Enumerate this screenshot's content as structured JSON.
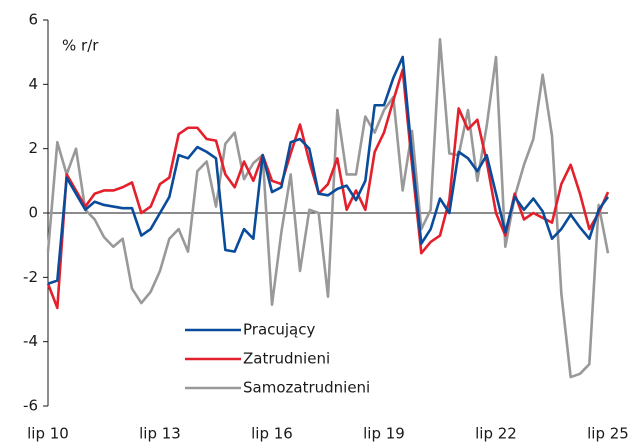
{
  "chart_data": {
    "type": "line",
    "annotation": "% r/r",
    "categories": [
      "lip 10",
      null,
      null,
      null,
      null,
      null,
      null,
      null,
      null,
      null,
      null,
      null,
      "lip 13",
      null,
      null,
      null,
      null,
      null,
      null,
      null,
      null,
      null,
      null,
      null,
      "lip 16",
      null,
      null,
      null,
      null,
      null,
      null,
      null,
      null,
      null,
      null,
      null,
      "lip 19",
      null,
      null,
      null,
      null,
      null,
      null,
      null,
      null,
      null,
      null,
      null,
      "lip 22",
      null,
      null,
      null,
      null,
      null,
      null,
      null,
      null,
      null,
      null,
      null,
      "lip 25"
    ],
    "ylim": [
      -6,
      6
    ],
    "yticks": [
      -6,
      -4,
      -2,
      0,
      2,
      4,
      6
    ],
    "grid": false,
    "legend": "bottom-center",
    "series": [
      {
        "name": "Pracujący",
        "color": "#0a4c9a",
        "values": [
          -2.2,
          -2.1,
          1.1,
          0.6,
          0.1,
          0.35,
          0.25,
          0.2,
          0.15,
          0.15,
          -0.7,
          -0.5,
          0.0,
          0.5,
          1.8,
          1.7,
          2.05,
          1.9,
          1.7,
          -1.15,
          -1.2,
          -0.5,
          -0.8,
          1.8,
          0.65,
          0.8,
          2.2,
          2.3,
          2.0,
          0.6,
          0.55,
          0.75,
          0.85,
          0.4,
          1.0,
          3.35,
          3.35,
          4.2,
          4.85,
          1.8,
          -0.95,
          -0.5,
          0.45,
          0.0,
          1.9,
          1.7,
          1.3,
          1.8,
          0.6,
          -0.6,
          0.5,
          0.1,
          0.45,
          0.05,
          -0.8,
          -0.5,
          -0.05,
          -0.45,
          -0.8,
          0.1,
          0.5
        ]
      },
      {
        "name": "Zatrudnieni",
        "color": "#e3202c",
        "values": [
          -2.2,
          -2.95,
          1.2,
          0.7,
          0.2,
          0.6,
          0.7,
          0.7,
          0.8,
          0.95,
          0.0,
          0.2,
          0.9,
          1.1,
          2.45,
          2.65,
          2.65,
          2.3,
          2.25,
          1.2,
          0.8,
          1.6,
          1.0,
          1.8,
          1.0,
          0.9,
          1.85,
          2.75,
          1.6,
          0.6,
          0.9,
          1.7,
          0.1,
          0.7,
          0.1,
          1.9,
          2.5,
          3.5,
          4.45,
          1.5,
          -1.25,
          -0.9,
          -0.7,
          0.4,
          3.25,
          2.6,
          2.9,
          1.6,
          0.0,
          -0.7,
          0.6,
          -0.2,
          0.0,
          -0.15,
          -0.3,
          0.9,
          1.5,
          0.6,
          -0.5,
          0.0,
          0.65
        ]
      },
      {
        "name": "Samozatrudnieni",
        "color": "#999999",
        "values": [
          -1.2,
          2.2,
          1.2,
          2.0,
          0.1,
          -0.2,
          -0.75,
          -1.05,
          -0.8,
          -2.35,
          -2.8,
          -2.45,
          -1.8,
          -0.8,
          -0.5,
          -1.2,
          1.3,
          1.6,
          0.2,
          2.15,
          2.5,
          1.05,
          1.55,
          1.8,
          -2.85,
          -0.6,
          1.2,
          -1.8,
          0.1,
          0.0,
          -2.6,
          3.2,
          1.2,
          1.2,
          3.0,
          2.5,
          3.2,
          3.6,
          0.7,
          2.55,
          -0.5,
          0.1,
          5.4,
          1.85,
          1.8,
          3.2,
          1.0,
          2.7,
          4.85,
          -1.05,
          0.5,
          1.5,
          2.3,
          4.3,
          2.4,
          -2.5,
          -5.1,
          -5.0,
          -4.7,
          0.25,
          -1.25
        ]
      }
    ]
  }
}
